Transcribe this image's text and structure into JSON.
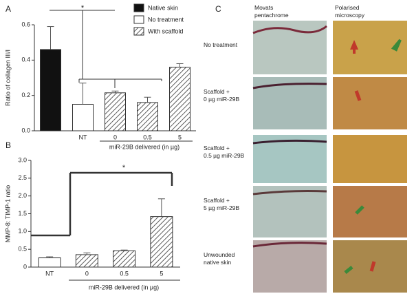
{
  "chart_data": [
    {
      "type": "bar",
      "panel_label": "A",
      "ylabel": "Ratio of collagen III/I",
      "xlabel": "miR-29B delivered (in µg)",
      "annotation": "*",
      "categories": [
        null,
        "NT",
        "0",
        "0.5",
        "5"
      ],
      "series": [
        {
          "name": "Native skin",
          "color": "#111111",
          "values": [
            0.46,
            null,
            null,
            null,
            null
          ],
          "errors": [
            0.13,
            null,
            null,
            null,
            null
          ]
        },
        {
          "name": "No treatment",
          "color": "#ffffff",
          "values": [
            null,
            0.15,
            null,
            null,
            null
          ],
          "errors": [
            null,
            0.12,
            null,
            null,
            null
          ]
        },
        {
          "name": "With scaffold",
          "color": "#ffffff",
          "hatch": true,
          "values": [
            null,
            null,
            0.215,
            0.16,
            0.36
          ],
          "errors": [
            null,
            null,
            0.01,
            0.03,
            0.02
          ]
        }
      ],
      "ylim": [
        0,
        0.6
      ],
      "yticks": [
        {
          "value": 0,
          "label": "0.0"
        },
        0.2,
        0.4,
        0.6
      ],
      "legend": "top-right"
    },
    {
      "type": "bar",
      "panel_label": "B",
      "ylabel": "MMP-8: TIMP-1 ratio",
      "xlabel": "miR-29B delivered (in µg)",
      "annotation": "*",
      "categories": [
        "NT",
        "0",
        "0.5",
        "5"
      ],
      "series": [
        {
          "name": "No treatment",
          "color": "#ffffff",
          "values": [
            0.26,
            null,
            null,
            null
          ],
          "errors": [
            0.03,
            null,
            null,
            null
          ]
        },
        {
          "name": "With scaffold",
          "color": "#ffffff",
          "hatch": true,
          "values": [
            null,
            0.35,
            0.46,
            1.42
          ],
          "errors": [
            null,
            0.05,
            0.02,
            0.5
          ]
        }
      ],
      "ylim": [
        0,
        3
      ],
      "yticks": [
        0,
        0.5,
        {
          "value": 1,
          "label": "1.0"
        },
        1.5,
        {
          "value": 2,
          "label": "2.0"
        },
        2.5,
        {
          "value": 3,
          "label": "3.0"
        }
      ],
      "legend": "none"
    }
  ],
  "panel_c": {
    "label": "C",
    "columns": [
      "Movats\npentachrome",
      "Polarised\nmicroscopy"
    ],
    "rows": [
      "No treatment",
      "Scaffold +\n0 µg miR-29B",
      "Scaffold +\n0.5 µg miR-29B",
      "Scaffold +\n5 µg miR-29B",
      "Unwounded\nnative skin"
    ]
  }
}
